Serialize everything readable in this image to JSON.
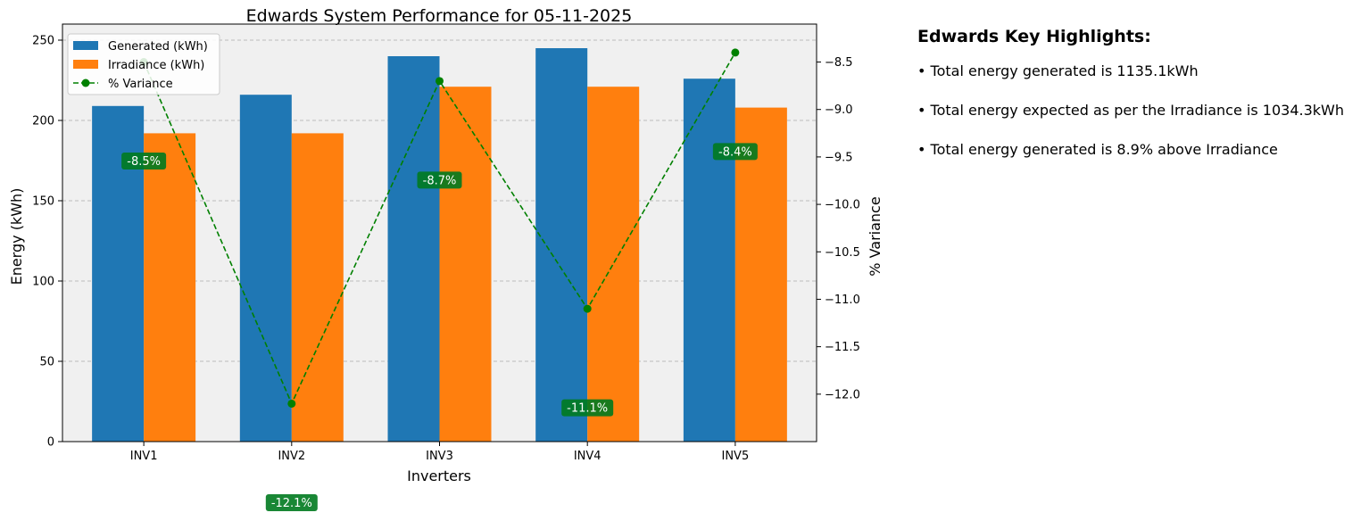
{
  "chart_data": {
    "type": "bar",
    "title": "Edwards System Performance for 05-11-2025",
    "xlabel": "Inverters",
    "ylabel": "Energy (kWh)",
    "y2label": "% Variance",
    "categories": [
      "INV1",
      "INV2",
      "INV3",
      "INV4",
      "INV5"
    ],
    "series": [
      {
        "name": "Generated (kWh)",
        "type": "bar",
        "color": "#1f77b4",
        "values": [
          209,
          216,
          240,
          245,
          226
        ]
      },
      {
        "name": "Irradiance (kWh)",
        "type": "bar",
        "color": "#ff7f0e",
        "values": [
          192,
          192,
          221,
          221,
          208
        ]
      },
      {
        "name": "% Variance",
        "type": "line",
        "axis": "right",
        "color": "#008000",
        "line_style": "dashed",
        "marker": "circle",
        "values": [
          -8.5,
          -12.1,
          -8.7,
          -11.1,
          -8.4
        ],
        "labels": [
          "-8.5%",
          "-12.1%",
          "-8.7%",
          "-11.1%",
          "-8.4%"
        ]
      }
    ],
    "ylim": [
      0,
      260
    ],
    "yticks": [
      0,
      50,
      100,
      150,
      200,
      250
    ],
    "y2lim": [
      -12.5,
      -8.1
    ],
    "y2ticks": [
      -12.0,
      -11.5,
      -11.0,
      -10.5,
      -10.0,
      -9.5,
      -9.0,
      -8.5
    ],
    "y2tick_labels": [
      "−12.0",
      "−11.5",
      "−11.0",
      "−10.5",
      "−10.0",
      "−9.5",
      "−9.0",
      "−8.5"
    ],
    "grid": "horizontal dashed",
    "legend_position": "top-left",
    "plot_background": "#f0f0f0",
    "label_box_color": "#007a1f"
  },
  "highlights": {
    "title": "Edwards Key Highlights:",
    "items": [
      "• Total energy generated is 1135.1kWh",
      "• Total energy expected as per the Irradiance is 1034.3kWh",
      "• Total energy generated is 8.9% above Irradiance"
    ]
  }
}
